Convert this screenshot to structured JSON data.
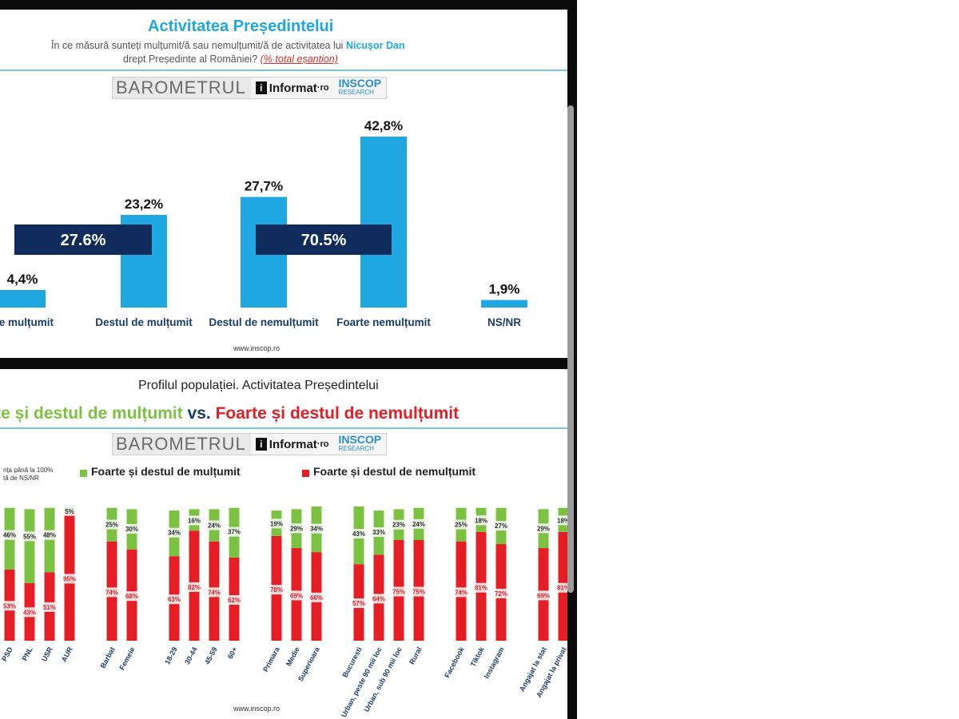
{
  "colors": {
    "bar": "#1ea7e1",
    "bracket": "#0f2c5c",
    "green": "#7cc242",
    "red": "#e31e24",
    "accent": "#1ea7e1"
  },
  "slide1": {
    "title": "Activitatea Președintelui",
    "question_part1": "În ce măsură sunteți mulțumit/ă sau nemulțumit/ă de activitatea lui",
    "question_name": "Nicușor Dan",
    "question_part2": "drept Președinte al României?",
    "question_note": "(% total eșantion)",
    "logo": {
      "barometru": "BAROMETRUL",
      "informat": "Informat",
      "informat_tld": "·ro",
      "inscop": "INSCOP",
      "inscop_sub": "RESEARCH"
    },
    "url": "www.inscop.ro"
  },
  "slide2": {
    "title": "Profilul populației. Activitatea Președintelui",
    "headline_green": "rte și destul de mulțumit",
    "headline_vs": "vs.",
    "headline_red": "Foarte și destul de nemulțumit",
    "logo": {
      "barometru": "BAROMETRUL",
      "informat": "Informat",
      "informat_tld": "·ro",
      "inscop": "INSCOP",
      "inscop_sub": "RESEARCH"
    },
    "note_line1": "nța până la 100%",
    "note_line2": "tă de NS/NR",
    "legend_green": "Foarte și destul de mulțumit",
    "legend_red": "Foarte și destul de nemulțumit",
    "url": "www.inscop.ro"
  },
  "chart_data": [
    {
      "type": "bar",
      "title": "Activitatea Președintelui",
      "categories": [
        "rte mulțumit",
        "Destul de mulțumit",
        "Destul de nemulțumit",
        "Foarte nemulțumit",
        "NS/NR"
      ],
      "values": [
        4.4,
        23.2,
        27.7,
        42.8,
        1.9
      ],
      "value_labels": [
        "4,4%",
        "23,2%",
        "27,7%",
        "42,8%",
        "1,9%"
      ],
      "groups": [
        {
          "label": "27.6%",
          "covers": [
            "rte mulțumit",
            "Destul de mulțumit"
          ]
        },
        {
          "label": "70.5%",
          "covers": [
            "Destul de nemulțumit",
            "Foarte nemulțumit"
          ]
        }
      ],
      "ylim": [
        0,
        50
      ]
    },
    {
      "type": "bar",
      "stacked": true,
      "title": "Profilul populației. Activitatea Președintelui",
      "groups": [
        {
          "categories": [
            "PSD",
            "PNL",
            "USR",
            "AUR"
          ]
        },
        {
          "categories": [
            "Barbat",
            "Femeie"
          ]
        },
        {
          "categories": [
            "18-29",
            "30-44",
            "45-59",
            "60+"
          ]
        },
        {
          "categories": [
            "Primara",
            "Medie",
            "Superioara"
          ]
        },
        {
          "categories": [
            "Bucuresti",
            "Urban, peste 90 mii loc",
            "Urban, sub 90 mii loc",
            "Rural"
          ]
        },
        {
          "categories": [
            "Facebook",
            "Tiktok",
            "Instagram"
          ]
        },
        {
          "categories": [
            "Angajat la stat",
            "Angajat la privat"
          ]
        }
      ],
      "series": [
        {
          "name": "Foarte și destul de nemulțumit",
          "values": [
            53,
            43,
            51,
            95,
            74,
            68,
            63,
            82,
            74,
            62,
            78,
            69,
            66,
            57,
            64,
            75,
            75,
            74,
            81,
            72,
            69,
            81
          ]
        },
        {
          "name": "Foarte și destul de mulțumit",
          "values": [
            46,
            55,
            48,
            5,
            25,
            30,
            34,
            16,
            24,
            37,
            19,
            29,
            34,
            43,
            33,
            23,
            24,
            25,
            18,
            27,
            29,
            18
          ]
        }
      ],
      "ylim": [
        0,
        100
      ]
    }
  ]
}
